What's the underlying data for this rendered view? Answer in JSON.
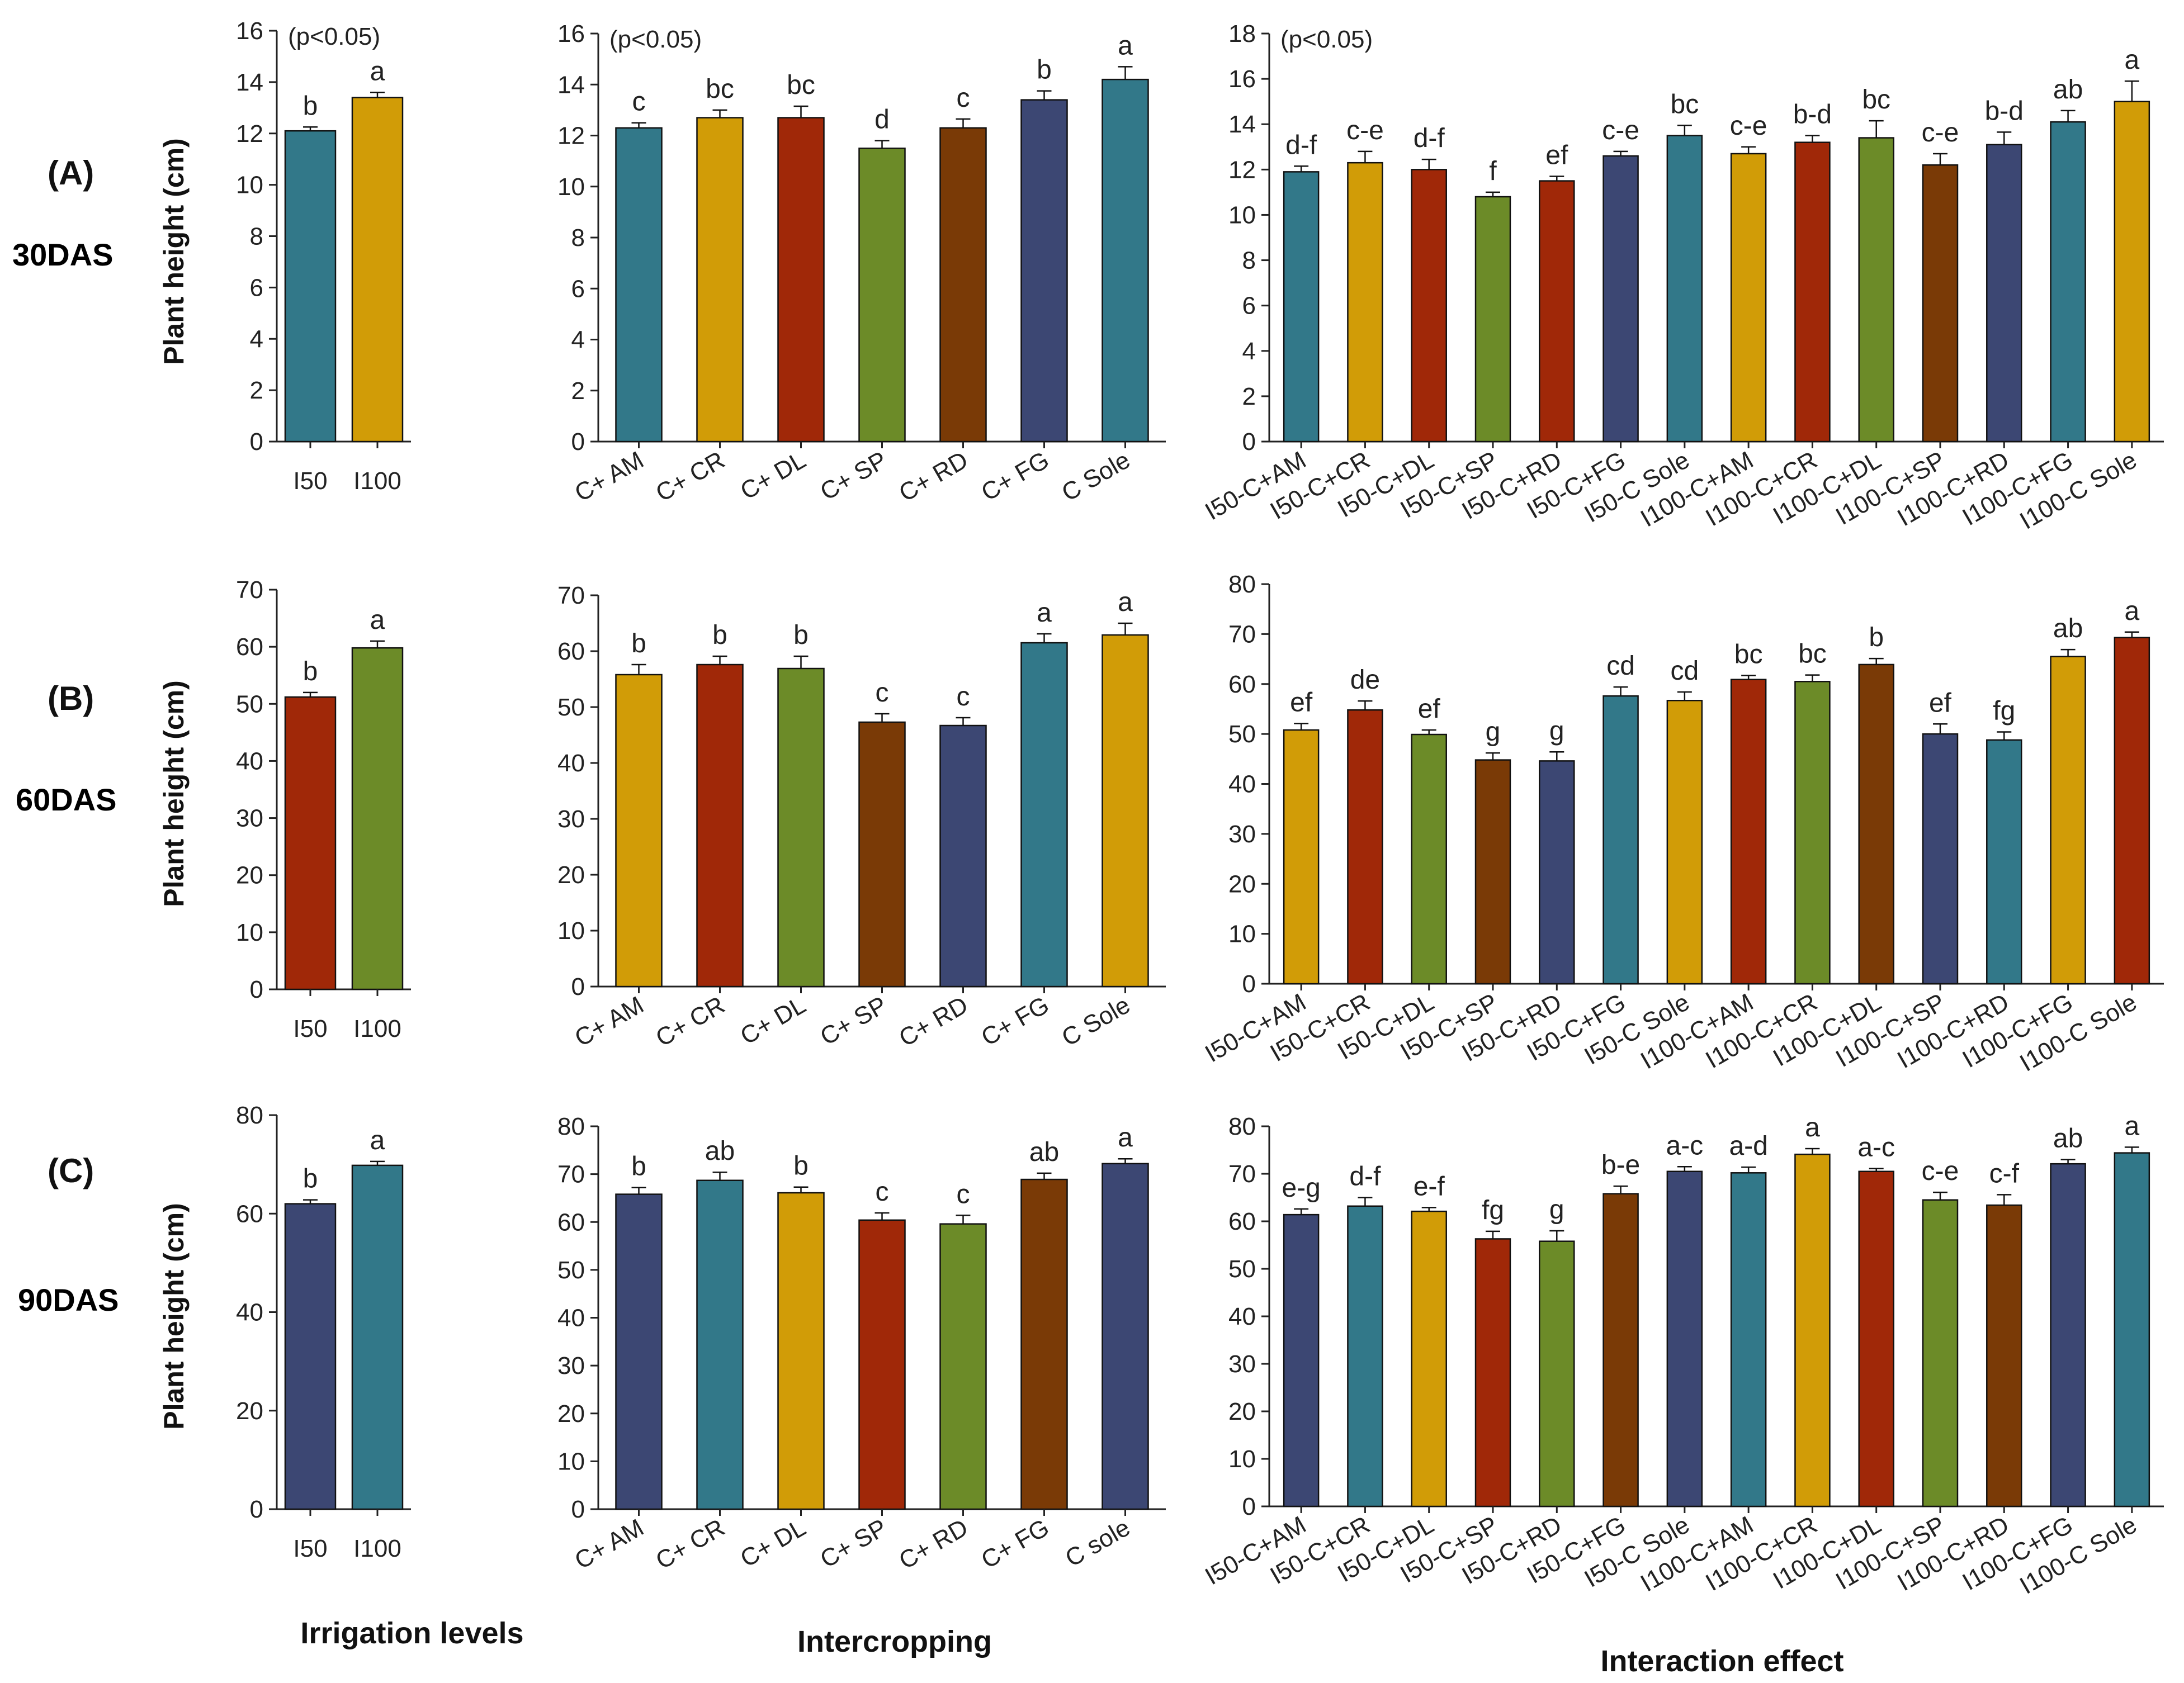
{
  "colors": {
    "teal": "#327889",
    "gold": "#D19C07",
    "red": "#A02808",
    "green": "#6C8B28",
    "brown": "#7A3A06",
    "navy": "#3C4773",
    "das": "#5B5BF5"
  },
  "significance_note": "(p<0.05)",
  "x_titles": [
    "Irrigation levels",
    "Intercropping",
    "Interaction effect"
  ],
  "rows": [
    {
      "label": "(A)",
      "das": "30DAS",
      "ylabel": "Plant height (cm)"
    },
    {
      "label": "(B)",
      "das": "60DAS",
      "ylabel": "Plant height (cm)"
    },
    {
      "label": "(C)",
      "das": "90DAS",
      "ylabel": "Plant height (cm)"
    }
  ],
  "chart_data": [
    {
      "id": "A1",
      "type": "bar",
      "ylabel": "Plant height (cm)",
      "ylim": [
        0,
        16
      ],
      "yticks": [
        0,
        2,
        4,
        6,
        8,
        10,
        12,
        14,
        16
      ],
      "note": "(p<0.05)",
      "categories": [
        "I50",
        "I100"
      ],
      "values": [
        12.1,
        13.4
      ],
      "errors": [
        0.15,
        0.2
      ],
      "letters": [
        "b",
        "a"
      ],
      "colors": [
        "#327889",
        "#D19C07"
      ]
    },
    {
      "id": "A2",
      "type": "bar",
      "ylim": [
        0,
        16
      ],
      "yticks": [
        0,
        2,
        4,
        6,
        8,
        10,
        12,
        14,
        16
      ],
      "note": "(p<0.05)",
      "categories": [
        "C+ AM",
        "C+ CR",
        "C+ DL",
        "C+ SP",
        "C+ RD",
        "C+ FG",
        "C Sole"
      ],
      "values": [
        12.3,
        12.7,
        12.7,
        11.5,
        12.3,
        13.4,
        14.2
      ],
      "errors": [
        0.2,
        0.3,
        0.45,
        0.3,
        0.35,
        0.35,
        0.5
      ],
      "letters": [
        "c",
        "bc",
        "bc",
        "d",
        "c",
        "b",
        "a"
      ],
      "colors": [
        "#327889",
        "#D19C07",
        "#A02808",
        "#6C8B28",
        "#7A3A06",
        "#3C4773",
        "#327889"
      ]
    },
    {
      "id": "A3",
      "type": "bar",
      "ylim": [
        0,
        18
      ],
      "yticks": [
        0,
        2,
        4,
        6,
        8,
        10,
        12,
        14,
        16,
        18
      ],
      "note": "(p<0.05)",
      "categories": [
        "I50-C+AM",
        "I50-C+CR",
        "I50-C+DL",
        "I50-C+SP",
        "I50-C+RD",
        "I50-C+FG",
        "I50-C Sole",
        "I100-C+AM",
        "I100-C+CR",
        "I100-C+DL",
        "I100-C+SP",
        "I100-C+RD",
        "I100-C+FG",
        "I100-C Sole"
      ],
      "values": [
        11.9,
        12.3,
        12.0,
        10.8,
        11.5,
        12.6,
        13.5,
        12.7,
        13.2,
        13.4,
        12.2,
        13.1,
        14.1,
        15.0
      ],
      "errors": [
        0.25,
        0.5,
        0.45,
        0.2,
        0.2,
        0.2,
        0.45,
        0.3,
        0.3,
        0.75,
        0.5,
        0.55,
        0.5,
        0.9
      ],
      "letters": [
        "d-f",
        "c-e",
        "d-f",
        "f",
        "ef",
        "c-e",
        "bc",
        "c-e",
        "b-d",
        "bc",
        "c-e",
        "b-d",
        "ab",
        "a"
      ],
      "colors": [
        "#327889",
        "#D19C07",
        "#A02808",
        "#6C8B28",
        "#A02808",
        "#3C4773",
        "#327889",
        "#D19C07",
        "#A02808",
        "#6C8B28",
        "#7A3A06",
        "#3C4773",
        "#327889",
        "#D19C07"
      ]
    },
    {
      "id": "B1",
      "type": "bar",
      "ylabel": "Plant height (cm)",
      "ylim": [
        0,
        70
      ],
      "yticks": [
        0,
        10,
        20,
        30,
        40,
        50,
        60,
        70
      ],
      "categories": [
        "I50",
        "I100"
      ],
      "values": [
        51.2,
        59.8
      ],
      "errors": [
        0.8,
        1.2
      ],
      "letters": [
        "b",
        "a"
      ],
      "colors": [
        "#A02808",
        "#6C8B28"
      ]
    },
    {
      "id": "B2",
      "type": "bar",
      "ylim": [
        0,
        70
      ],
      "yticks": [
        0,
        10,
        20,
        30,
        40,
        50,
        60,
        70
      ],
      "categories": [
        "C+ AM",
        "C+ CR",
        "C+ DL",
        "C+ SP",
        "C+ RD",
        "C+ FG",
        "C Sole"
      ],
      "values": [
        55.8,
        57.6,
        56.9,
        47.3,
        46.7,
        61.5,
        62.9
      ],
      "errors": [
        1.8,
        1.5,
        2.2,
        1.5,
        1.4,
        1.6,
        2.1
      ],
      "letters": [
        "b",
        "b",
        "b",
        "c",
        "c",
        "a",
        "a"
      ],
      "colors": [
        "#D19C07",
        "#A02808",
        "#6C8B28",
        "#7A3A06",
        "#3C4773",
        "#327889",
        "#D19C07"
      ]
    },
    {
      "id": "B3",
      "type": "bar",
      "ylim": [
        0,
        80
      ],
      "yticks": [
        0,
        10,
        20,
        30,
        40,
        50,
        60,
        70,
        80
      ],
      "categories": [
        "I50-C+AM",
        "I50-C+CR",
        "I50-C+DL",
        "I50-C+SP",
        "I50-C+RD",
        "I50-C+FG",
        "I50-C Sole",
        "I100-C+AM",
        "I100-C+CR",
        "I100-C+DL",
        "I100-C+SP",
        "I100-C+RD",
        "I100-C+FG",
        "I100-C Sole"
      ],
      "values": [
        50.8,
        54.8,
        49.9,
        44.8,
        44.6,
        57.6,
        56.7,
        60.9,
        60.5,
        63.9,
        50.0,
        48.8,
        65.5,
        69.3
      ],
      "errors": [
        1.3,
        1.8,
        0.9,
        1.4,
        1.8,
        1.8,
        1.7,
        0.8,
        1.3,
        1.2,
        2.0,
        1.6,
        1.4,
        1.1
      ],
      "letters": [
        "ef",
        "de",
        "ef",
        "g",
        "g",
        "cd",
        "cd",
        "bc",
        "bc",
        "b",
        "ef",
        "fg",
        "ab",
        "a"
      ],
      "colors": [
        "#D19C07",
        "#A02808",
        "#6C8B28",
        "#7A3A06",
        "#3C4773",
        "#327889",
        "#D19C07",
        "#A02808",
        "#6C8B28",
        "#7A3A06",
        "#3C4773",
        "#327889",
        "#D19C07",
        "#A02808"
      ]
    },
    {
      "id": "C1",
      "type": "bar",
      "ylabel": "Plant height (cm)",
      "ylim": [
        0,
        80
      ],
      "yticks": [
        0,
        20,
        40,
        60,
        80
      ],
      "categories": [
        "I50",
        "I100"
      ],
      "values": [
        62.0,
        69.8
      ],
      "errors": [
        0.8,
        0.8
      ],
      "letters": [
        "b",
        "a"
      ],
      "colors": [
        "#3C4773",
        "#327889"
      ]
    },
    {
      "id": "C2",
      "type": "bar",
      "ylim": [
        0,
        80
      ],
      "yticks": [
        0,
        10,
        20,
        30,
        40,
        50,
        60,
        70,
        80
      ],
      "categories": [
        "C+ AM",
        "C+ CR",
        "C+ DL",
        "C+ SP",
        "C+ RD",
        "C+ FG",
        "C sole"
      ],
      "values": [
        65.8,
        68.7,
        66.1,
        60.4,
        59.6,
        68.9,
        72.2
      ],
      "errors": [
        1.4,
        1.7,
        1.2,
        1.5,
        1.8,
        1.3,
        1.0
      ],
      "letters": [
        "b",
        "ab",
        "b",
        "c",
        "c",
        "ab",
        "a"
      ],
      "colors": [
        "#3C4773",
        "#327889",
        "#D19C07",
        "#A02808",
        "#6C8B28",
        "#7A3A06",
        "#3C4773"
      ]
    },
    {
      "id": "C3",
      "type": "bar",
      "ylim": [
        0,
        80
      ],
      "yticks": [
        0,
        10,
        20,
        30,
        40,
        50,
        60,
        70,
        80
      ],
      "categories": [
        "I50-C+AM",
        "I50-C+CR",
        "I50-C+DL",
        "I50-C+SP",
        "I50-C+RD",
        "I50-C+FG",
        "I50-C Sole",
        "I100-C+AM",
        "I100-C+CR",
        "I100-C+DL",
        "I100-C+SP",
        "I100-C+RD",
        "I100-C+FG",
        "I100-C Sole"
      ],
      "values": [
        61.4,
        63.2,
        62.1,
        56.3,
        55.8,
        65.8,
        70.5,
        70.2,
        74.1,
        70.5,
        64.5,
        63.4,
        72.1,
        74.4
      ],
      "errors": [
        1.2,
        1.8,
        0.8,
        1.6,
        2.2,
        1.6,
        1.0,
        1.2,
        1.2,
        0.6,
        1.6,
        2.2,
        0.9,
        1.2
      ],
      "letters": [
        "e-g",
        "d-f",
        "e-f",
        "fg",
        "g",
        "b-e",
        "a-c",
        "a-d",
        "a",
        "a-c",
        "c-e",
        "c-f",
        "ab",
        "a"
      ],
      "colors": [
        "#3C4773",
        "#327889",
        "#D19C07",
        "#A02808",
        "#6C8B28",
        "#7A3A06",
        "#3C4773",
        "#327889",
        "#D19C07",
        "#A02808",
        "#6C8B28",
        "#7A3A06",
        "#3C4773",
        "#327889"
      ]
    }
  ]
}
